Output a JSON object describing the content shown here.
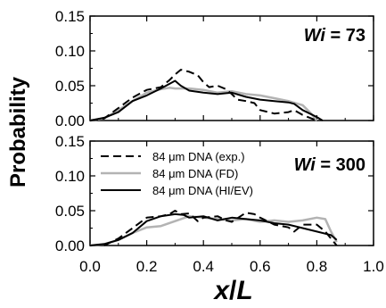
{
  "figure": {
    "ylabel": "Probability",
    "xlabel_main": "x",
    "xlabel_slash": "/",
    "xlabel_L": "L",
    "x_ticks": [
      "0.0",
      "0.2",
      "0.4",
      "0.6",
      "0.8",
      "1.0"
    ],
    "y_ticks": [
      "0.00",
      "0.05",
      "0.10",
      "0.15"
    ]
  },
  "colors": {
    "exp": "#000000",
    "fd": "#b3b3b3",
    "hiev": "#000000"
  },
  "chart_data": [
    {
      "type": "line",
      "panel": "top",
      "annotation_italic": "Wi",
      "annotation_value": " = 73",
      "xlim": [
        0.0,
        1.0
      ],
      "ylim": [
        0.0,
        0.15
      ],
      "grid": false,
      "series": [
        {
          "key": "exp",
          "style": "dashed",
          "points": [
            [
              0.0,
              0.0
            ],
            [
              0.05,
              0.003
            ],
            [
              0.1,
              0.018
            ],
            [
              0.15,
              0.033
            ],
            [
              0.2,
              0.044
            ],
            [
              0.25,
              0.048
            ],
            [
              0.28,
              0.058
            ],
            [
              0.3,
              0.066
            ],
            [
              0.32,
              0.073
            ],
            [
              0.35,
              0.07
            ],
            [
              0.38,
              0.065
            ],
            [
              0.4,
              0.055
            ],
            [
              0.42,
              0.048
            ],
            [
              0.45,
              0.05
            ],
            [
              0.48,
              0.045
            ],
            [
              0.5,
              0.038
            ],
            [
              0.52,
              0.03
            ],
            [
              0.55,
              0.028
            ],
            [
              0.58,
              0.025
            ],
            [
              0.6,
              0.015
            ],
            [
              0.65,
              0.01
            ],
            [
              0.7,
              0.012
            ],
            [
              0.72,
              0.015
            ],
            [
              0.75,
              0.008
            ],
            [
              0.8,
              0.0
            ]
          ]
        },
        {
          "key": "fd",
          "style": "solid",
          "points": [
            [
              0.0,
              0.0
            ],
            [
              0.05,
              0.003
            ],
            [
              0.1,
              0.015
            ],
            [
              0.15,
              0.028
            ],
            [
              0.2,
              0.04
            ],
            [
              0.25,
              0.045
            ],
            [
              0.28,
              0.047
            ],
            [
              0.3,
              0.046
            ],
            [
              0.35,
              0.046
            ],
            [
              0.4,
              0.044
            ],
            [
              0.45,
              0.04
            ],
            [
              0.5,
              0.042
            ],
            [
              0.55,
              0.038
            ],
            [
              0.6,
              0.036
            ],
            [
              0.65,
              0.032
            ],
            [
              0.7,
              0.028
            ],
            [
              0.75,
              0.022
            ],
            [
              0.78,
              0.01
            ],
            [
              0.8,
              0.0
            ]
          ]
        },
        {
          "key": "hiev",
          "style": "solid",
          "points": [
            [
              0.0,
              0.0
            ],
            [
              0.05,
              0.004
            ],
            [
              0.1,
              0.012
            ],
            [
              0.15,
              0.028
            ],
            [
              0.2,
              0.036
            ],
            [
              0.25,
              0.046
            ],
            [
              0.3,
              0.057
            ],
            [
              0.32,
              0.05
            ],
            [
              0.35,
              0.043
            ],
            [
              0.4,
              0.04
            ],
            [
              0.45,
              0.038
            ],
            [
              0.5,
              0.04
            ],
            [
              0.55,
              0.034
            ],
            [
              0.6,
              0.03
            ],
            [
              0.65,
              0.028
            ],
            [
              0.7,
              0.026
            ],
            [
              0.72,
              0.024
            ],
            [
              0.75,
              0.015
            ],
            [
              0.8,
              0.005
            ],
            [
              0.82,
              0.0
            ]
          ]
        }
      ]
    },
    {
      "type": "line",
      "panel": "bottom",
      "annotation_italic": "Wi",
      "annotation_value": " = 300",
      "xlim": [
        0.0,
        1.0
      ],
      "ylim": [
        0.0,
        0.15
      ],
      "grid": false,
      "legend_position": "top-left",
      "series": [
        {
          "key": "exp",
          "name": "84 μm DNA (exp.)",
          "style": "dashed",
          "points": [
            [
              0.05,
              0.0
            ],
            [
              0.1,
              0.01
            ],
            [
              0.15,
              0.025
            ],
            [
              0.2,
              0.04
            ],
            [
              0.25,
              0.042
            ],
            [
              0.28,
              0.045
            ],
            [
              0.3,
              0.05
            ],
            [
              0.32,
              0.045
            ],
            [
              0.35,
              0.046
            ],
            [
              0.38,
              0.035
            ],
            [
              0.4,
              0.04
            ],
            [
              0.45,
              0.042
            ],
            [
              0.48,
              0.036
            ],
            [
              0.5,
              0.034
            ],
            [
              0.55,
              0.047
            ],
            [
              0.58,
              0.045
            ],
            [
              0.6,
              0.04
            ],
            [
              0.65,
              0.03
            ],
            [
              0.7,
              0.026
            ],
            [
              0.72,
              0.02
            ],
            [
              0.75,
              0.03
            ],
            [
              0.8,
              0.03
            ],
            [
              0.83,
              0.02
            ],
            [
              0.85,
              0.01
            ],
            [
              0.87,
              0.0
            ]
          ]
        },
        {
          "key": "fd",
          "name": "84 μm DNA (FD)",
          "style": "solid",
          "points": [
            [
              0.0,
              0.0
            ],
            [
              0.05,
              0.002
            ],
            [
              0.1,
              0.008
            ],
            [
              0.15,
              0.018
            ],
            [
              0.2,
              0.026
            ],
            [
              0.25,
              0.028
            ],
            [
              0.3,
              0.035
            ],
            [
              0.35,
              0.042
            ],
            [
              0.4,
              0.04
            ],
            [
              0.45,
              0.038
            ],
            [
              0.5,
              0.036
            ],
            [
              0.55,
              0.038
            ],
            [
              0.6,
              0.034
            ],
            [
              0.65,
              0.036
            ],
            [
              0.7,
              0.034
            ],
            [
              0.75,
              0.036
            ],
            [
              0.8,
              0.04
            ],
            [
              0.83,
              0.038
            ],
            [
              0.85,
              0.02
            ],
            [
              0.87,
              0.005
            ]
          ]
        },
        {
          "key": "hiev",
          "name": "84 μm DNA (HI/EV)",
          "style": "solid",
          "points": [
            [
              0.0,
              0.0
            ],
            [
              0.05,
              0.002
            ],
            [
              0.1,
              0.008
            ],
            [
              0.15,
              0.018
            ],
            [
              0.2,
              0.035
            ],
            [
              0.25,
              0.042
            ],
            [
              0.3,
              0.045
            ],
            [
              0.33,
              0.044
            ],
            [
              0.35,
              0.04
            ],
            [
              0.4,
              0.042
            ],
            [
              0.45,
              0.036
            ],
            [
              0.5,
              0.04
            ],
            [
              0.55,
              0.038
            ],
            [
              0.6,
              0.036
            ],
            [
              0.65,
              0.032
            ],
            [
              0.7,
              0.03
            ],
            [
              0.75,
              0.025
            ],
            [
              0.8,
              0.02
            ],
            [
              0.85,
              0.015
            ],
            [
              0.87,
              0.008
            ]
          ]
        }
      ]
    }
  ]
}
